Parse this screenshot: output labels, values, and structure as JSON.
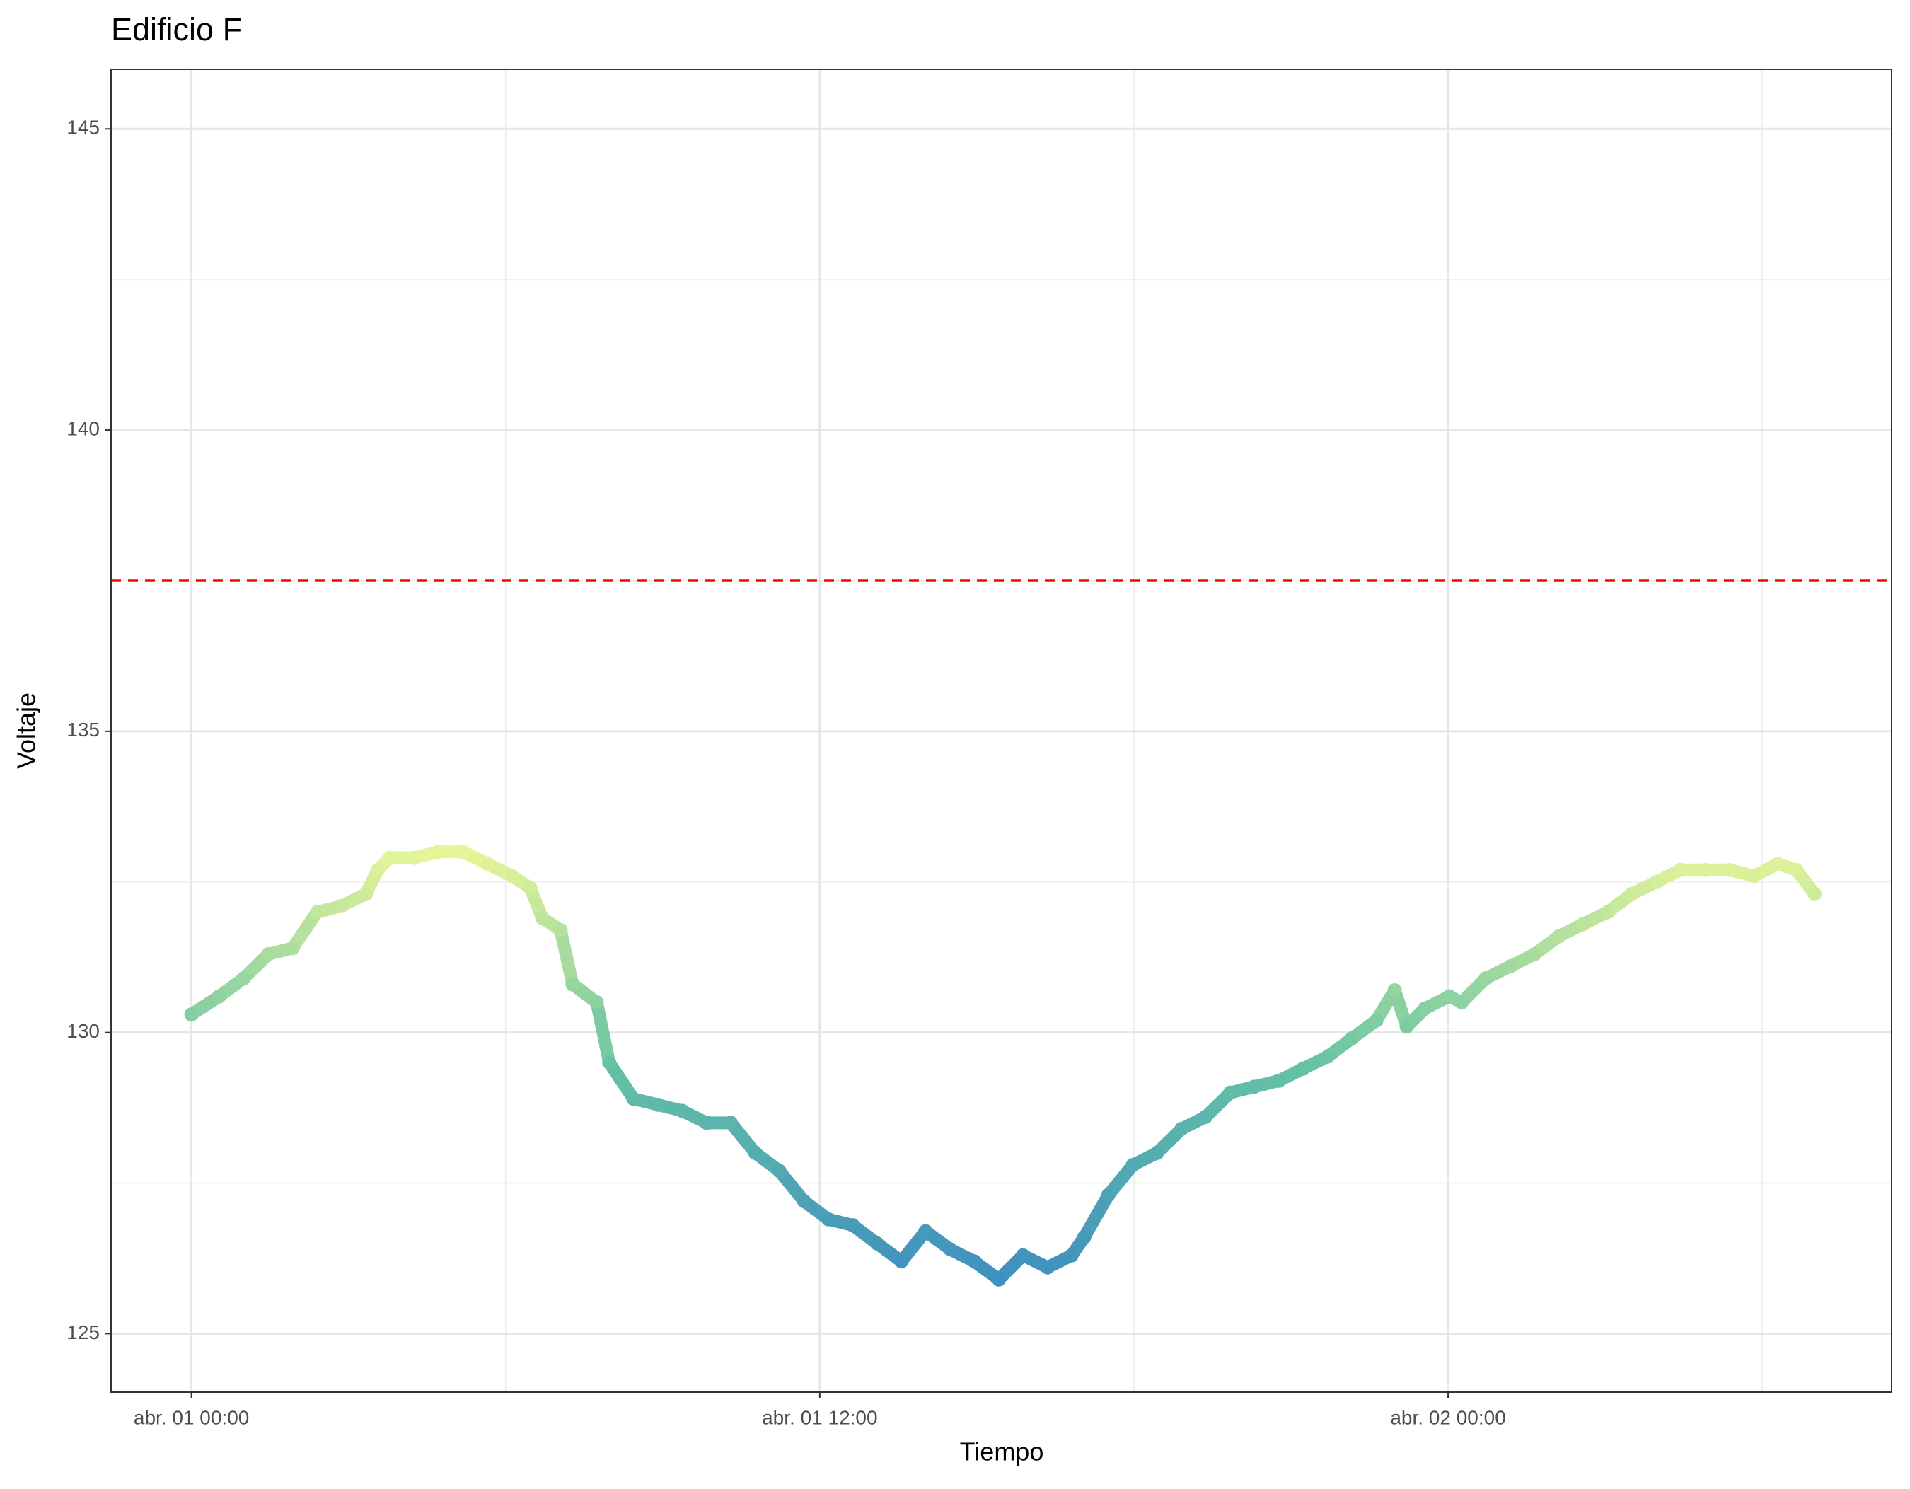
{
  "chart_data": {
    "type": "scatter",
    "title": "Edificio F",
    "x_label": "Tiempo",
    "y_label": "Voltaje",
    "x": [
      0,
      0.53,
      1.0,
      1.47,
      1.93,
      2.4,
      2.86,
      3.33,
      3.56,
      3.79,
      4.26,
      4.72,
      5.19,
      5.65,
      6.12,
      6.47,
      6.7,
      7.05,
      7.28,
      7.74,
      7.98,
      8.44,
      8.91,
      9.37,
      9.84,
      10.3,
      10.77,
      11.23,
      11.7,
      12.16,
      12.63,
      13.09,
      13.56,
      14.02,
      14.49,
      14.95,
      15.42,
      15.88,
      16.35,
      16.81,
      17.05,
      17.51,
      17.98,
      18.44,
      18.91,
      19.37,
      19.84,
      20.3,
      20.77,
      21.23,
      21.7,
      22.16,
      22.63,
      22.98,
      23.21,
      23.56,
      24.02,
      24.26,
      24.72,
      25.19,
      25.65,
      26.12,
      26.58,
      27.05,
      27.51,
      27.98,
      28.44,
      28.91,
      29.37,
      29.84,
      30.3,
      30.65,
      31.0
    ],
    "values": [
      130.3,
      130.6,
      130.9,
      131.3,
      131.4,
      132.0,
      132.1,
      132.3,
      132.7,
      132.9,
      132.9,
      133.0,
      133.0,
      132.8,
      132.6,
      132.4,
      131.9,
      131.7,
      130.8,
      130.5,
      129.5,
      128.9,
      128.8,
      128.7,
      128.5,
      128.5,
      128.0,
      127.7,
      127.2,
      126.9,
      126.8,
      126.5,
      126.2,
      126.7,
      126.4,
      126.2,
      125.9,
      126.3,
      126.1,
      126.3,
      126.6,
      127.3,
      127.8,
      128.0,
      128.4,
      128.6,
      129.0,
      129.1,
      129.2,
      129.4,
      129.6,
      129.9,
      130.2,
      130.7,
      130.1,
      130.4,
      130.6,
      130.5,
      130.9,
      131.1,
      131.3,
      131.6,
      131.8,
      132.0,
      132.3,
      132.5,
      132.7,
      132.7,
      132.7,
      132.6,
      132.8,
      132.7,
      132.3
    ],
    "color_scale": [
      "#3f8fc0",
      "#66c2a5",
      "#e6f598"
    ],
    "hline": {
      "value": 137.5,
      "color": "#ff0000"
    },
    "xlim": [
      -1.535,
      32.47
    ],
    "ylim": [
      124.03,
      145.99
    ],
    "xticks": [
      {
        "value": 0,
        "label": "abr. 01 00:00"
      },
      {
        "value": 12,
        "label": "abr. 01 12:00"
      },
      {
        "value": 24,
        "label": "abr. 02 00:00"
      }
    ],
    "xminorticks": [
      6,
      18,
      30
    ],
    "yticks": [
      125,
      130,
      135,
      140,
      145
    ],
    "yminorticks": [
      127.5,
      132.5,
      137.5,
      142.5
    ],
    "grid": true
  }
}
